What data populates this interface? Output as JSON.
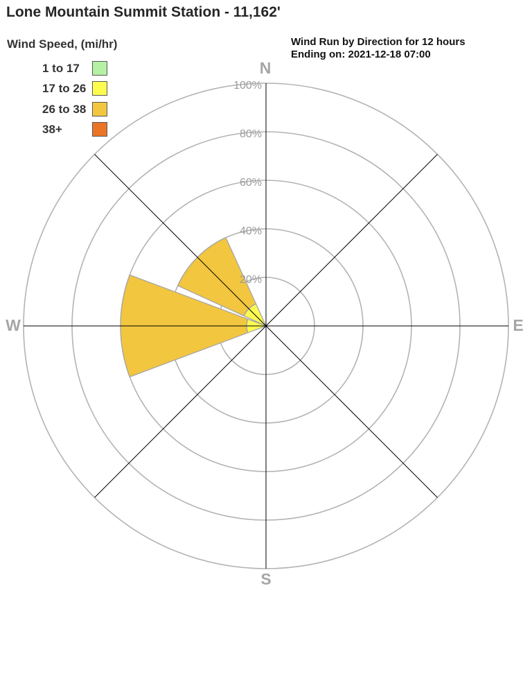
{
  "header": {
    "title": "Lone Mountain Summit Station - 11,162'"
  },
  "legend": {
    "title": "Wind Speed, (mi/hr)",
    "items": [
      {
        "label": "1 to 17",
        "color": "#b4f1a2"
      },
      {
        "label": "17 to 26",
        "color": "#fcfc4f"
      },
      {
        "label": "26 to 38",
        "color": "#f2c63f"
      },
      {
        "label": "38+",
        "color": "#ea7526"
      }
    ]
  },
  "annotation": {
    "line1": "Wind Run by Direction for 12 hours",
    "line2": "Ending on: 2021-12-18 07:00"
  },
  "chart_data": {
    "type": "wind_rose",
    "title": "Lone Mountain Summit Station - 11,162'",
    "subtitle": "Wind Run by Direction for 12 hours Ending on: 2021-12-18 07:00",
    "units": "percent of wind run",
    "radial_axis": {
      "min": 0,
      "max": 100,
      "rings_percent": [
        20,
        40,
        60,
        80,
        100
      ],
      "ring_label_suffix": "%"
    },
    "compass_labels": [
      "N",
      "E",
      "S",
      "W"
    ],
    "spoke_angles_deg": [
      0,
      45,
      90,
      135,
      180,
      225,
      270,
      315
    ],
    "sector_half_width_deg": 20.5,
    "speed_bins_mph": [
      "1 to 17",
      "17 to 26",
      "26 to 38",
      "38+"
    ],
    "petals": [
      {
        "direction": "N",
        "center_deg": 0,
        "segments": []
      },
      {
        "direction": "NE",
        "center_deg": 45,
        "segments": []
      },
      {
        "direction": "E",
        "center_deg": 90,
        "segments": []
      },
      {
        "direction": "SE",
        "center_deg": 135,
        "segments": []
      },
      {
        "direction": "S",
        "center_deg": 180,
        "segments": []
      },
      {
        "direction": "SW",
        "center_deg": 225,
        "segments": []
      },
      {
        "direction": "W",
        "center_deg": 270,
        "segments": [
          {
            "speed": "17 to 26",
            "from_pct": 0,
            "to_pct": 8,
            "color": "#fcfc4f"
          },
          {
            "speed": "26 to 38",
            "from_pct": 8,
            "to_pct": 60,
            "color": "#f2c63f"
          }
        ]
      },
      {
        "direction": "NW",
        "center_deg": 315,
        "segments": [
          {
            "speed": "17 to 26",
            "from_pct": 0,
            "to_pct": 10,
            "color": "#fcfc4f"
          },
          {
            "speed": "26 to 38",
            "from_pct": 10,
            "to_pct": 40,
            "color": "#f2c63f"
          }
        ]
      }
    ],
    "colors": {
      "grid_ring": "#b3b3b3",
      "spoke_axis": "#000000",
      "axis_label": "#a6a6a6",
      "ring_label": "#9c9c9c",
      "petal_border": "#a6a6a6",
      "background": "#ffffff"
    },
    "legend_position": "top-left",
    "grid": true
  }
}
